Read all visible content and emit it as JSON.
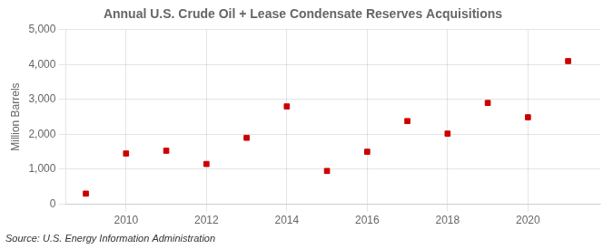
{
  "chart_data": {
    "type": "scatter",
    "title": "Annual U.S. Crude Oil + Lease Condensate Reserves Acquisitions",
    "ylabel": "Million Barrels",
    "annotations": [
      "Source: U.S. Energy Information Administration"
    ],
    "x": [
      2009,
      2010,
      2011,
      2012,
      2013,
      2014,
      2015,
      2016,
      2017,
      2018,
      2019,
      2020,
      2021
    ],
    "values": [
      300,
      1450,
      1530,
      1150,
      1900,
      2800,
      950,
      1500,
      2380,
      2020,
      2900,
      2490,
      4100
    ],
    "color": "#cc0000",
    "marker": "square",
    "xlim": [
      2008.5,
      2021.8
    ],
    "xticks": [
      2010,
      2012,
      2014,
      2016,
      2018,
      2020
    ],
    "ylim": [
      0,
      5000
    ],
    "yticks": [
      0,
      {
        "value": 1000,
        "label": "1,000"
      },
      {
        "value": 2000,
        "label": "2,000"
      },
      {
        "value": 3000,
        "label": "3,000"
      },
      {
        "value": 4000,
        "label": "4,000"
      },
      {
        "value": 5000,
        "label": "5,000"
      }
    ],
    "grid": true
  }
}
